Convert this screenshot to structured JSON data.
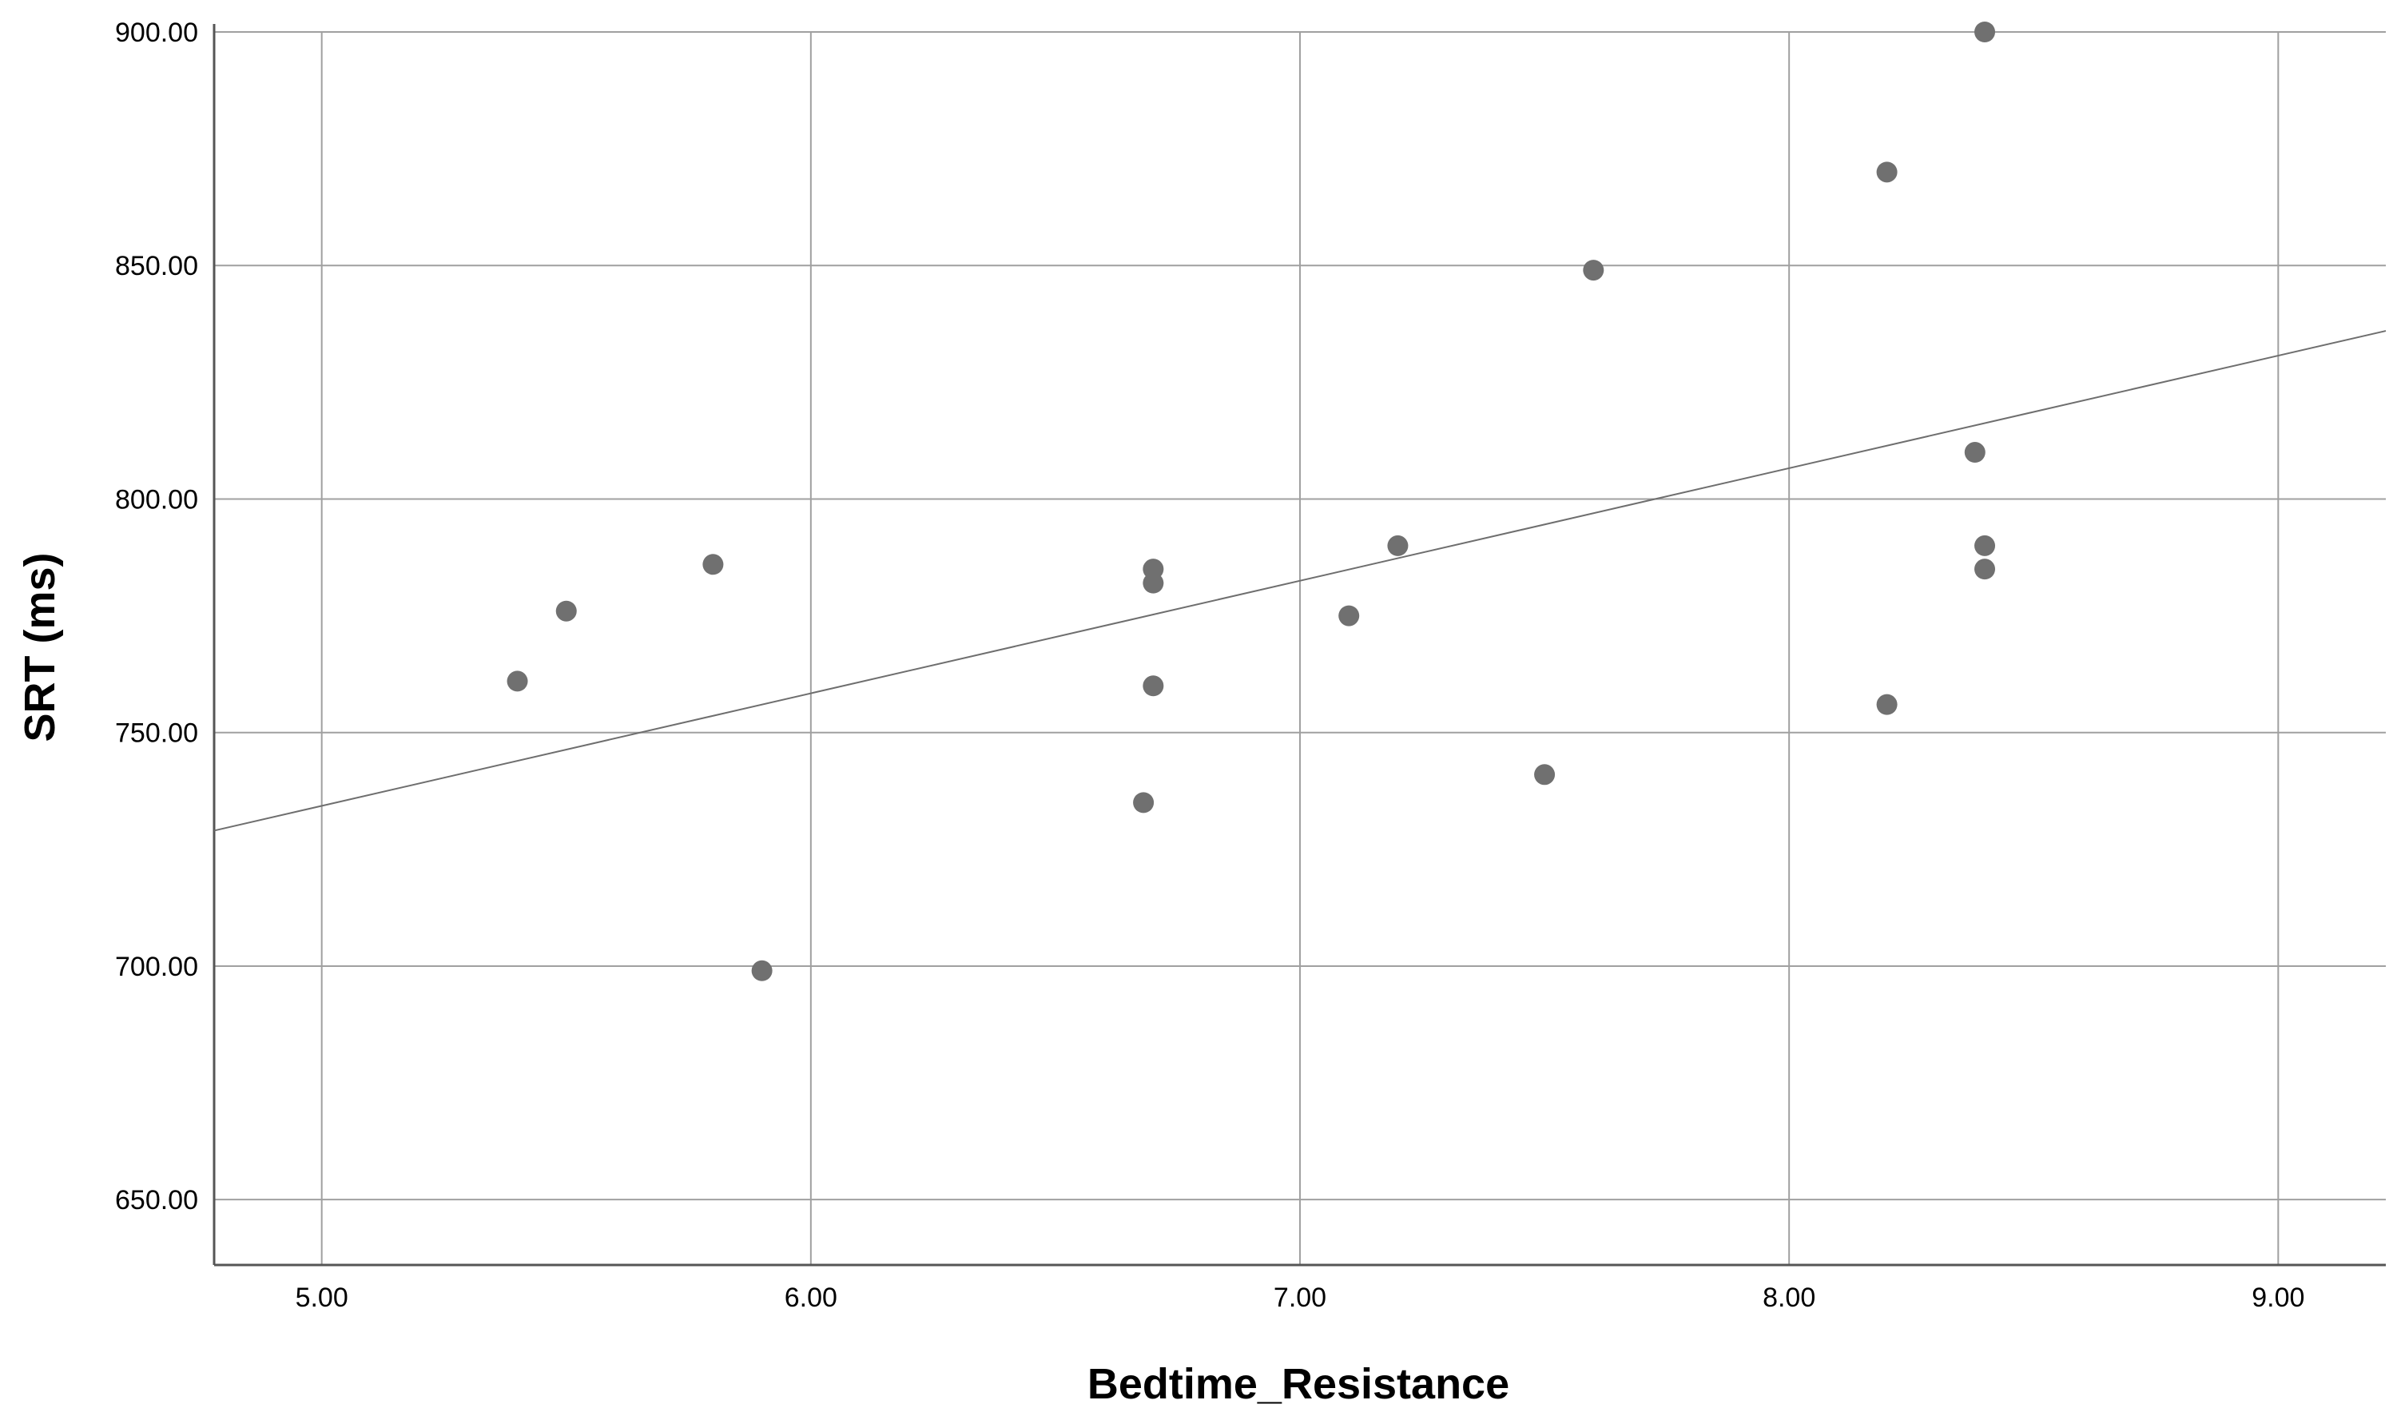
{
  "chart_data": {
    "type": "scatter",
    "title": "",
    "xlabel": "Bedtime_Resistance",
    "ylabel": "SRT (ms)",
    "xlim": [
      4.78,
      9.22
    ],
    "ylim": [
      636,
      900
    ],
    "x_ticks": [
      5,
      6,
      7,
      8,
      9
    ],
    "x_tick_labels": [
      "5.00",
      "6.00",
      "7.00",
      "8.00",
      "9.00"
    ],
    "y_ticks": [
      650,
      700,
      750,
      800,
      850,
      900
    ],
    "y_tick_labels": [
      "650.00",
      "700.00",
      "750.00",
      "800.00",
      "850.00",
      "900.00"
    ],
    "grid": true,
    "legend": "none",
    "point_color": "#707070",
    "points": [
      {
        "x": 5.4,
        "y": 761
      },
      {
        "x": 5.5,
        "y": 776
      },
      {
        "x": 5.8,
        "y": 786
      },
      {
        "x": 5.9,
        "y": 699
      },
      {
        "x": 6.68,
        "y": 735
      },
      {
        "x": 6.7,
        "y": 785
      },
      {
        "x": 6.7,
        "y": 782
      },
      {
        "x": 6.7,
        "y": 760
      },
      {
        "x": 7.1,
        "y": 775
      },
      {
        "x": 7.2,
        "y": 790
      },
      {
        "x": 7.5,
        "y": 741
      },
      {
        "x": 7.6,
        "y": 849
      },
      {
        "x": 8.2,
        "y": 870
      },
      {
        "x": 8.2,
        "y": 756
      },
      {
        "x": 8.38,
        "y": 810
      },
      {
        "x": 8.4,
        "y": 900
      },
      {
        "x": 8.4,
        "y": 790
      },
      {
        "x": 8.4,
        "y": 785
      }
    ],
    "fit_line": {
      "x": [
        4.78,
        9.22
      ],
      "y": [
        729,
        836
      ]
    }
  }
}
